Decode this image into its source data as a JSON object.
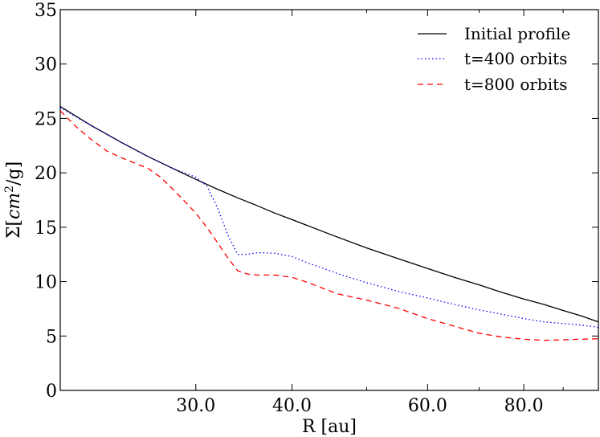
{
  "chart_data": {
    "type": "line",
    "title": "",
    "xlabel": "R [au]",
    "ylabel": "Σ[cm²/g]",
    "ylabel_parts": {
      "prefix": "Σ[",
      "unit": "cm",
      "exp": "2",
      "suffix": "/g]"
    },
    "xscale": "log",
    "xlim": [
      20,
      100
    ],
    "ylim": [
      0,
      35
    ],
    "xticks": [
      {
        "value": 30,
        "label": "30.0"
      },
      {
        "value": 40,
        "label": "40.0"
      },
      {
        "value": 60,
        "label": "60.0"
      },
      {
        "value": 80,
        "label": "80.0"
      }
    ],
    "yticks": [
      {
        "value": 0,
        "label": "0"
      },
      {
        "value": 5,
        "label": "5"
      },
      {
        "value": 10,
        "label": "10"
      },
      {
        "value": 15,
        "label": "15"
      },
      {
        "value": 20,
        "label": "20"
      },
      {
        "value": 25,
        "label": "25"
      },
      {
        "value": 30,
        "label": "30"
      },
      {
        "value": 35,
        "label": "35"
      }
    ],
    "legend_position": "top-right",
    "series": [
      {
        "name": "Initial profile",
        "color": "#000000",
        "style": "solid",
        "x": [
          20,
          22,
          24,
          26,
          28,
          30,
          32,
          34,
          36,
          38,
          40,
          45,
          50,
          55,
          60,
          65,
          70,
          75,
          80,
          85,
          90,
          95,
          100
        ],
        "y": [
          26.1,
          24.3,
          22.8,
          21.5,
          20.4,
          19.4,
          18.5,
          17.7,
          17.0,
          16.3,
          15.7,
          14.3,
          13.1,
          12.1,
          11.2,
          10.4,
          9.7,
          9.0,
          8.4,
          7.9,
          7.35,
          6.85,
          6.3
        ]
      },
      {
        "name": "t=400 orbits",
        "color": "#0000ff",
        "style": "dotted",
        "x": [
          20,
          22,
          24,
          26,
          28,
          30,
          31,
          32,
          33,
          34,
          35,
          36,
          37,
          38,
          40,
          42,
          44,
          46,
          50,
          55,
          60,
          65,
          70,
          75,
          80,
          85,
          90,
          95,
          100
        ],
        "y": [
          26.0,
          24.3,
          22.8,
          21.5,
          20.4,
          19.6,
          18.8,
          16.8,
          14.3,
          12.5,
          12.5,
          12.65,
          12.65,
          12.6,
          12.3,
          11.7,
          11.2,
          10.7,
          9.9,
          9.1,
          8.5,
          7.9,
          7.4,
          7.0,
          6.6,
          6.3,
          6.15,
          6.0,
          5.8
        ]
      },
      {
        "name": "t=800 orbits",
        "color": "#ff0000",
        "style": "dashed",
        "x": [
          20,
          21,
          22,
          23,
          24,
          25,
          26,
          27,
          28,
          29,
          30,
          31,
          32,
          33,
          34,
          35,
          36,
          38,
          40,
          42,
          44,
          46,
          50,
          55,
          60,
          65,
          70,
          75,
          80,
          85,
          90,
          95,
          100
        ],
        "y": [
          25.7,
          24.2,
          23.0,
          22.0,
          21.4,
          20.9,
          20.4,
          19.6,
          18.5,
          17.4,
          16.3,
          15.0,
          13.6,
          12.2,
          11.0,
          10.7,
          10.6,
          10.6,
          10.4,
          9.9,
          9.35,
          8.85,
          8.3,
          7.55,
          6.6,
          5.9,
          5.25,
          4.9,
          4.7,
          4.6,
          4.65,
          4.7,
          4.75
        ]
      }
    ]
  }
}
